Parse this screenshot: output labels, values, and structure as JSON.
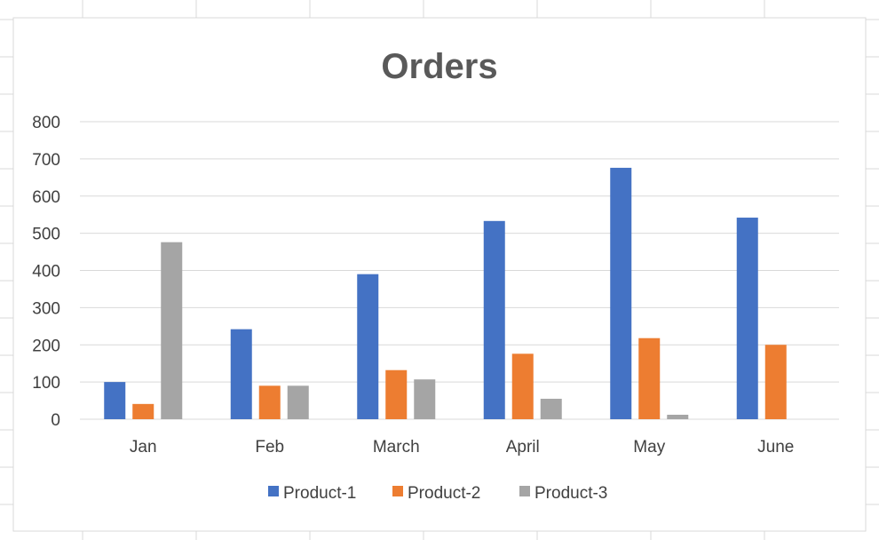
{
  "chart_data": {
    "type": "bar",
    "title": "Orders",
    "categories": [
      "Jan",
      "Feb",
      "March",
      "April",
      "May",
      "June"
    ],
    "series": [
      {
        "name": "Product-1",
        "color": "#4472c4",
        "values": [
          100,
          242,
          390,
          533,
          676,
          542
        ]
      },
      {
        "name": "Product-2",
        "color": "#ed7d31",
        "values": [
          41,
          90,
          132,
          176,
          218,
          200
        ]
      },
      {
        "name": "Product-3",
        "color": "#a5a5a5",
        "values": [
          476,
          90,
          107,
          55,
          12,
          0
        ]
      }
    ],
    "ylim": [
      0,
      800
    ],
    "yticks": [
      0,
      100,
      200,
      300,
      400,
      500,
      600,
      700,
      800
    ],
    "grid": true,
    "legend": "bottom",
    "xlabel": "",
    "ylabel": ""
  }
}
